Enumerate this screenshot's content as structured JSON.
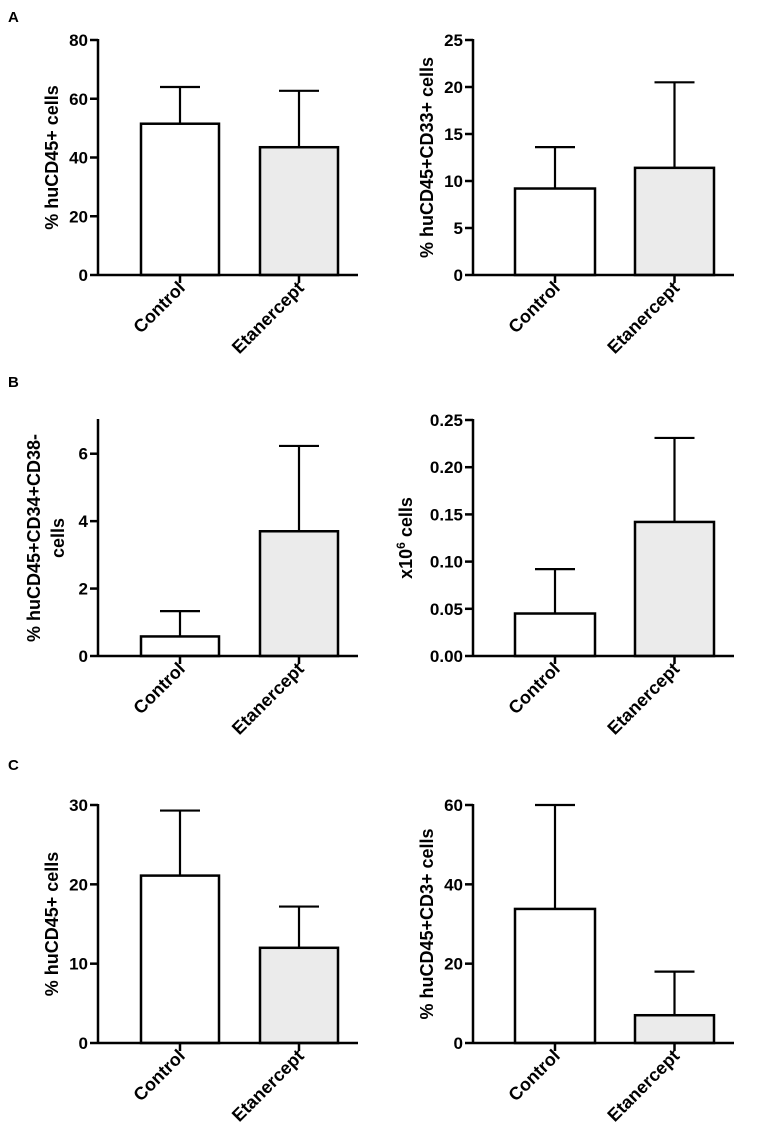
{
  "panel_letters": [
    "A",
    "B",
    "C"
  ],
  "colors": {
    "control": "#ffffff",
    "treated": "#ebebeb",
    "ink": "#000000"
  },
  "chart_data": [
    {
      "type": "bar",
      "panel": "A",
      "categories": [
        "Control",
        "Etanercept"
      ],
      "values": [
        51.5,
        43.5
      ],
      "errors": [
        12.5,
        19.2
      ],
      "ylabel": "% huCD45+ cells",
      "ylim": [
        0,
        80
      ],
      "yticks": [
        0,
        20,
        40,
        60,
        80
      ],
      "ytick_labels": [
        "0",
        "20",
        "40",
        "60",
        "80"
      ],
      "title": "",
      "xlabel": ""
    },
    {
      "type": "bar",
      "panel": "A",
      "categories": [
        "Control",
        "Etanercept"
      ],
      "values": [
        9.2,
        11.4
      ],
      "errors": [
        4.4,
        9.1
      ],
      "ylabel": "% huCD45+CD33+ cells",
      "ylim": [
        0,
        25
      ],
      "yticks": [
        0,
        5,
        10,
        15,
        20,
        25
      ],
      "ytick_labels": [
        "0",
        "5",
        "10",
        "15",
        "20",
        "25"
      ],
      "title": "",
      "xlabel": ""
    },
    {
      "type": "bar",
      "panel": "B",
      "categories": [
        "Control",
        "Etanercept"
      ],
      "values": [
        0.58,
        3.7
      ],
      "errors": [
        0.75,
        2.53
      ],
      "ylabel": "% huCD45+CD34+CD38-",
      "ylabel_line2": "cells",
      "ylim": [
        0,
        7
      ],
      "yticks": [
        0,
        2,
        4,
        6
      ],
      "ytick_labels": [
        "0",
        "2",
        "4",
        "6"
      ],
      "title": "",
      "xlabel": ""
    },
    {
      "type": "bar",
      "panel": "B",
      "categories": [
        "Control",
        "Etanercept"
      ],
      "values": [
        0.045,
        0.142
      ],
      "errors": [
        0.047,
        0.089
      ],
      "ylabel_prefix": "x10",
      "ylabel_sup": "6",
      "ylabel_suffix": " cells",
      "ylim": [
        0,
        0.25
      ],
      "yticks": [
        0,
        0.05,
        0.1,
        0.15,
        0.2,
        0.25
      ],
      "ytick_labels": [
        "0.00",
        "0.05",
        "0.10",
        "0.15",
        "0.20",
        "0.25"
      ],
      "title": "",
      "xlabel": ""
    },
    {
      "type": "bar",
      "panel": "C",
      "categories": [
        "Control",
        "Etanercept"
      ],
      "values": [
        21.1,
        12.0
      ],
      "errors": [
        8.2,
        5.2
      ],
      "ylabel": "% huCD45+ cells",
      "ylim": [
        0,
        30
      ],
      "yticks": [
        0,
        10,
        20,
        30
      ],
      "ytick_labels": [
        "0",
        "10",
        "20",
        "30"
      ],
      "title": "",
      "xlabel": ""
    },
    {
      "type": "bar",
      "panel": "C",
      "categories": [
        "Control",
        "Etanercept"
      ],
      "values": [
        33.8,
        7.0
      ],
      "errors": [
        26.2,
        11.0
      ],
      "ylabel": "% huCD45+CD3+ cells",
      "ylim": [
        0,
        60
      ],
      "yticks": [
        0,
        20,
        40,
        60
      ],
      "ytick_labels": [
        "0",
        "20",
        "40",
        "60"
      ],
      "title": "",
      "xlabel": ""
    }
  ]
}
